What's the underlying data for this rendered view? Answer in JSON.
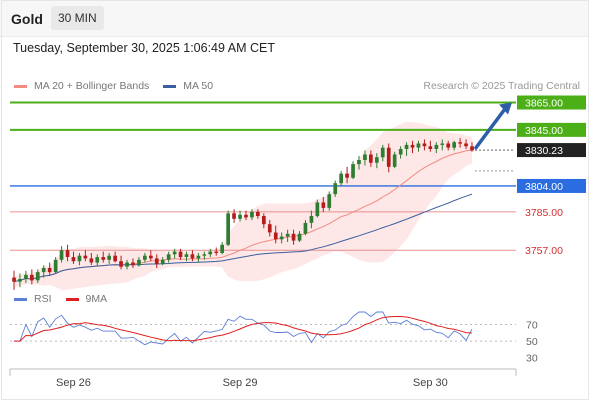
{
  "header": {
    "symbol": "Gold",
    "timeframe": "30 MIN",
    "datetime": "Tuesday, September 30, 2025 1:06:49 AM CET"
  },
  "legend": {
    "items": [
      {
        "label": "MA 20 + Bollinger Bands",
        "color": "#f28b82"
      },
      {
        "label": "MA 50",
        "color": "#3a5fa0"
      }
    ],
    "research": "Research © 2025 Trading Central"
  },
  "rsi_legend": {
    "items": [
      {
        "label": "RSI",
        "color": "#5b7fd6"
      },
      {
        "label": "9MA",
        "color": "#e02020"
      }
    ]
  },
  "colors": {
    "bull": "#2e7d32",
    "bear": "#b71c1c",
    "resistance": "#4caf18",
    "support": "#2b6de0",
    "level": "#e89090",
    "arrow": "#2f5ea8"
  },
  "levels": [
    {
      "value": 3865.0,
      "label": "3865.00",
      "kind": "resistance"
    },
    {
      "value": 3845.0,
      "label": "3845.00",
      "kind": "resistance"
    },
    {
      "value": 3830.23,
      "label": "3830.23",
      "kind": "last"
    },
    {
      "value": 3804.0,
      "label": "3804.00",
      "kind": "support"
    },
    {
      "value": 3785.0,
      "label": "3785.00",
      "kind": "level"
    },
    {
      "value": 3757.0,
      "label": "3757.00",
      "kind": "level"
    }
  ],
  "chart_data": {
    "type": "candlestick",
    "symbol": "Gold",
    "timeframe": "30 MIN",
    "x_ticks": [
      "Sep 26",
      "Sep 29",
      "Sep 30"
    ],
    "price_range": [
      3725,
      3880
    ],
    "last_price": 3830.23,
    "candles": [
      [
        3737,
        3742,
        3728,
        3734
      ],
      [
        3734,
        3740,
        3730,
        3736
      ],
      [
        3736,
        3742,
        3733,
        3739
      ],
      [
        3739,
        3743,
        3732,
        3735
      ],
      [
        3735,
        3743,
        3733,
        3741
      ],
      [
        3741,
        3746,
        3737,
        3744
      ],
      [
        3744,
        3748,
        3739,
        3741
      ],
      [
        3741,
        3752,
        3740,
        3750
      ],
      [
        3750,
        3760,
        3748,
        3757
      ],
      [
        3757,
        3761,
        3749,
        3752
      ],
      [
        3752,
        3756,
        3747,
        3749
      ],
      [
        3749,
        3755,
        3746,
        3753
      ],
      [
        3753,
        3757,
        3749,
        3751
      ],
      [
        3751,
        3755,
        3746,
        3748
      ],
      [
        3748,
        3754,
        3745,
        3752
      ],
      [
        3752,
        3756,
        3748,
        3750
      ],
      [
        3750,
        3755,
        3747,
        3753
      ],
      [
        3753,
        3756,
        3748,
        3749
      ],
      [
        3749,
        3753,
        3743,
        3745
      ],
      [
        3745,
        3750,
        3743,
        3748
      ],
      [
        3748,
        3751,
        3744,
        3746
      ],
      [
        3746,
        3752,
        3745,
        3750
      ],
      [
        3750,
        3755,
        3748,
        3753
      ],
      [
        3753,
        3757,
        3749,
        3751
      ],
      [
        3751,
        3754,
        3744,
        3747
      ],
      [
        3747,
        3752,
        3746,
        3750
      ],
      [
        3750,
        3756,
        3748,
        3754
      ],
      [
        3754,
        3758,
        3751,
        3756
      ],
      [
        3756,
        3758,
        3750,
        3752
      ],
      [
        3752,
        3756,
        3749,
        3754
      ],
      [
        3754,
        3757,
        3749,
        3751
      ],
      [
        3751,
        3755,
        3748,
        3753
      ],
      [
        3753,
        3756,
        3750,
        3754
      ],
      [
        3754,
        3758,
        3752,
        3756
      ],
      [
        3756,
        3759,
        3753,
        3755
      ],
      [
        3755,
        3763,
        3754,
        3761
      ],
      [
        3761,
        3786,
        3760,
        3784
      ],
      [
        3784,
        3787,
        3777,
        3780
      ],
      [
        3780,
        3786,
        3778,
        3783
      ],
      [
        3783,
        3786,
        3779,
        3781
      ],
      [
        3781,
        3787,
        3779,
        3785
      ],
      [
        3785,
        3787,
        3780,
        3782
      ],
      [
        3782,
        3784,
        3773,
        3776
      ],
      [
        3776,
        3779,
        3767,
        3770
      ],
      [
        3770,
        3775,
        3762,
        3765
      ],
      [
        3765,
        3770,
        3762,
        3767
      ],
      [
        3767,
        3772,
        3763,
        3769
      ],
      [
        3769,
        3772,
        3761,
        3764
      ],
      [
        3764,
        3771,
        3763,
        3769
      ],
      [
        3769,
        3779,
        3768,
        3777
      ],
      [
        3777,
        3786,
        3773,
        3782
      ],
      [
        3782,
        3794,
        3781,
        3792
      ],
      [
        3792,
        3796,
        3785,
        3788
      ],
      [
        3788,
        3800,
        3786,
        3798
      ],
      [
        3798,
        3808,
        3796,
        3806
      ],
      [
        3806,
        3815,
        3804,
        3813
      ],
      [
        3813,
        3818,
        3806,
        3810
      ],
      [
        3810,
        3822,
        3809,
        3820
      ],
      [
        3820,
        3826,
        3816,
        3823
      ],
      [
        3823,
        3830,
        3819,
        3827
      ],
      [
        3827,
        3830,
        3818,
        3821
      ],
      [
        3821,
        3828,
        3817,
        3825
      ],
      [
        3825,
        3834,
        3822,
        3832
      ],
      [
        3832,
        3835,
        3814,
        3818
      ],
      [
        3818,
        3829,
        3817,
        3827
      ],
      [
        3827,
        3833,
        3824,
        3831
      ],
      [
        3831,
        3836,
        3826,
        3834
      ],
      [
        3834,
        3837,
        3828,
        3832
      ],
      [
        3832,
        3837,
        3829,
        3835
      ],
      [
        3835,
        3838,
        3830,
        3833
      ],
      [
        3833,
        3837,
        3829,
        3831
      ],
      [
        3831,
        3836,
        3828,
        3834
      ],
      [
        3834,
        3838,
        3830,
        3835
      ],
      [
        3835,
        3837,
        3830,
        3832
      ],
      [
        3832,
        3837,
        3830,
        3836
      ],
      [
        3836,
        3839,
        3832,
        3835
      ],
      [
        3835,
        3838,
        3831,
        3833
      ],
      [
        3833,
        3836,
        3829,
        3830
      ]
    ],
    "rsi": {
      "ticks": [
        70,
        50,
        30
      ],
      "range": [
        20,
        85
      ]
    }
  }
}
